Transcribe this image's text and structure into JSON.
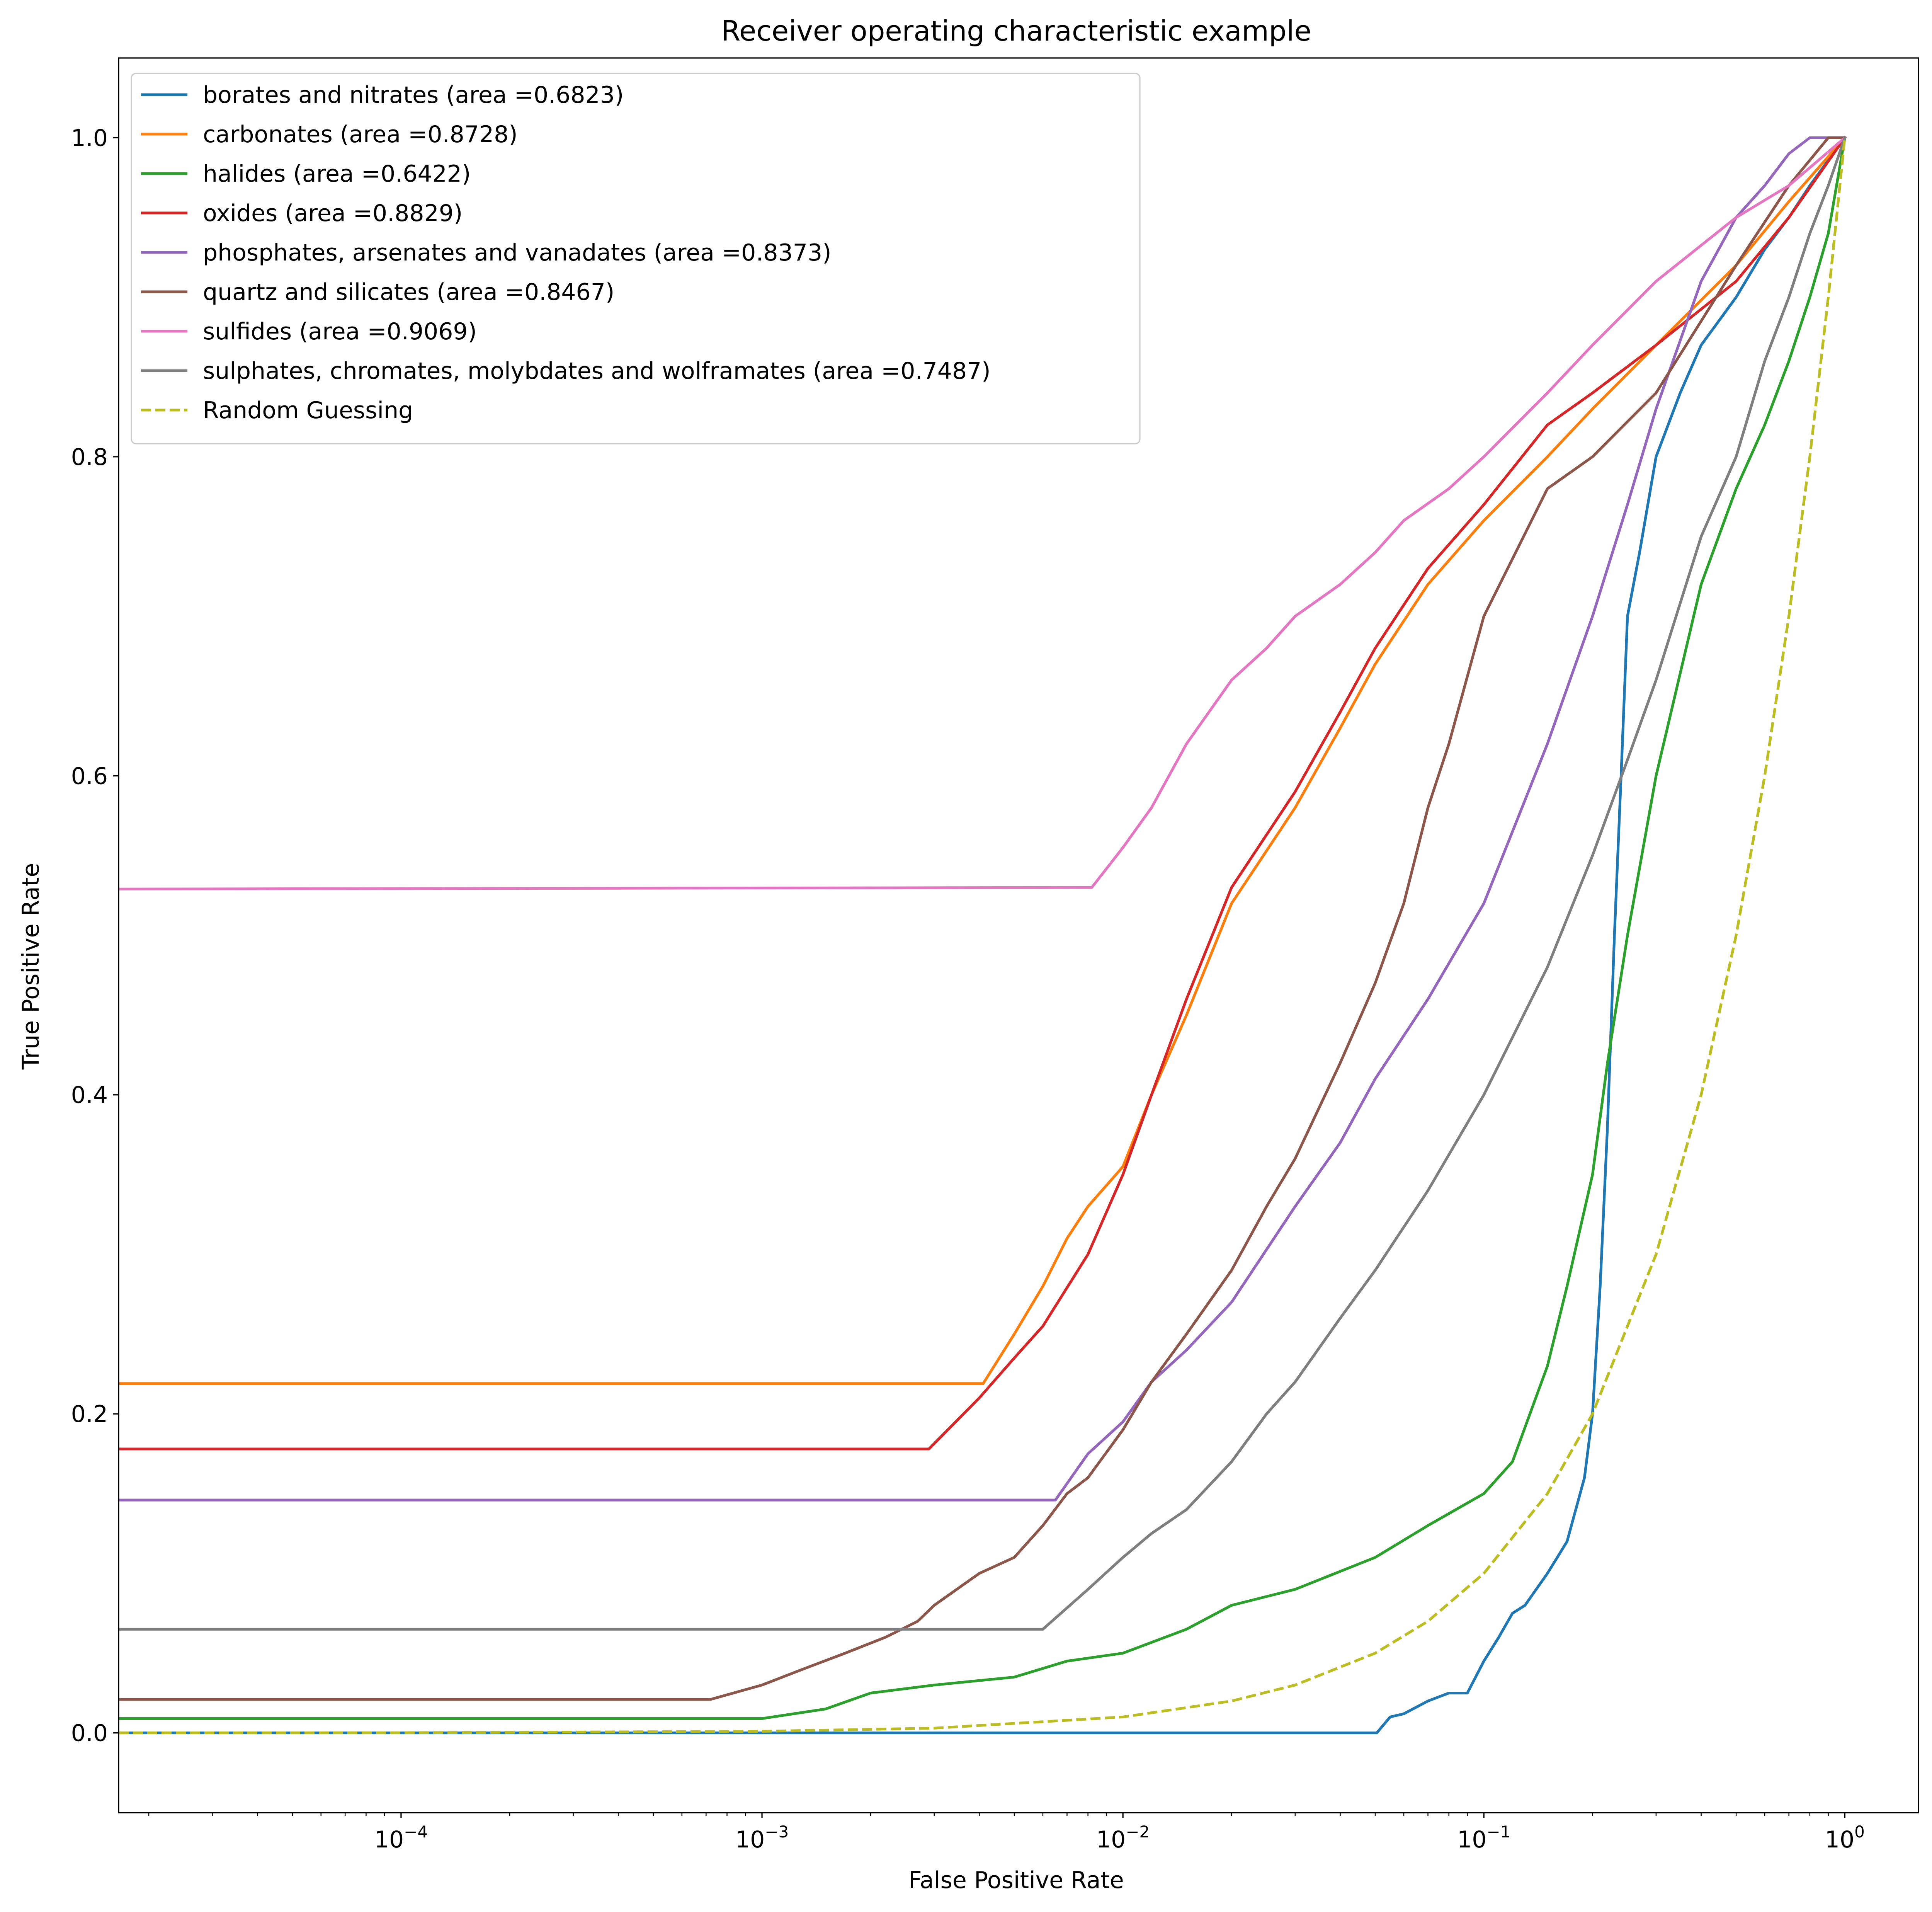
{
  "chart_data": {
    "type": "line",
    "title": "Receiver operating characteristic example",
    "xlabel": "False Positive Rate",
    "ylabel": "True Positive Rate",
    "xscale": "log",
    "xlim": [
      1.65e-05,
      1.6
    ],
    "ylim": [
      -0.05,
      1.05
    ],
    "grid": false,
    "legend_position": "upper-left",
    "x_ticks": [
      {
        "value": 0.0001,
        "base": "10",
        "exp": "−4"
      },
      {
        "value": 0.001,
        "base": "10",
        "exp": "−3"
      },
      {
        "value": 0.01,
        "base": "10",
        "exp": "−2"
      },
      {
        "value": 0.1,
        "base": "10",
        "exp": "−1"
      },
      {
        "value": 1,
        "base": "10",
        "exp": "0"
      }
    ],
    "y_ticks": [
      {
        "value": 0.0,
        "label": "0.0"
      },
      {
        "value": 0.2,
        "label": "0.2"
      },
      {
        "value": 0.4,
        "label": "0.4"
      },
      {
        "value": 0.6,
        "label": "0.6"
      },
      {
        "value": 0.8,
        "label": "0.8"
      },
      {
        "value": 1.0,
        "label": "1.0"
      }
    ],
    "series": [
      {
        "name": "borates and nitrates (area =0.6823)",
        "color": "#1f77b4",
        "dash": false,
        "x": [
          1.65e-05,
          0.0505,
          0.055,
          0.06,
          0.07,
          0.08,
          0.09,
          0.1,
          0.11,
          0.12,
          0.13,
          0.15,
          0.17,
          0.19,
          0.2,
          0.21,
          0.22,
          0.23,
          0.24,
          0.25,
          0.27,
          0.3,
          0.35,
          0.4,
          0.5,
          0.6,
          0.7,
          0.8,
          1.0
        ],
        "y": [
          0.0,
          0.0,
          0.01,
          0.012,
          0.02,
          0.025,
          0.025,
          0.045,
          0.06,
          0.075,
          0.08,
          0.1,
          0.12,
          0.16,
          0.2,
          0.28,
          0.38,
          0.5,
          0.6,
          0.7,
          0.74,
          0.8,
          0.84,
          0.87,
          0.9,
          0.93,
          0.95,
          0.97,
          1.0
        ]
      },
      {
        "name": "carbonates (area =0.8728)",
        "color": "#ff7f0e",
        "dash": false,
        "x": [
          1.65e-05,
          0.0041,
          0.005,
          0.006,
          0.007,
          0.008,
          0.01,
          0.012,
          0.015,
          0.02,
          0.03,
          0.04,
          0.05,
          0.07,
          0.1,
          0.15,
          0.2,
          0.3,
          0.5,
          0.7,
          1.0
        ],
        "y": [
          0.219,
          0.219,
          0.25,
          0.28,
          0.31,
          0.33,
          0.355,
          0.4,
          0.45,
          0.52,
          0.58,
          0.63,
          0.67,
          0.72,
          0.76,
          0.8,
          0.83,
          0.87,
          0.92,
          0.96,
          1.0
        ]
      },
      {
        "name": "halides (area =0.6422)",
        "color": "#2ca02c",
        "dash": false,
        "x": [
          1.65e-05,
          0.001,
          0.0015,
          0.002,
          0.003,
          0.005,
          0.007,
          0.01,
          0.015,
          0.02,
          0.03,
          0.05,
          0.07,
          0.1,
          0.12,
          0.15,
          0.17,
          0.2,
          0.22,
          0.25,
          0.3,
          0.4,
          0.5,
          0.6,
          0.7,
          0.8,
          0.9,
          1.0
        ],
        "y": [
          0.009,
          0.009,
          0.015,
          0.025,
          0.03,
          0.035,
          0.045,
          0.05,
          0.065,
          0.08,
          0.09,
          0.11,
          0.13,
          0.15,
          0.17,
          0.23,
          0.28,
          0.35,
          0.42,
          0.5,
          0.6,
          0.72,
          0.78,
          0.82,
          0.86,
          0.9,
          0.94,
          1.0
        ]
      },
      {
        "name": "oxides (area =0.8829)",
        "color": "#d62728",
        "dash": false,
        "x": [
          1.65e-05,
          0.0029,
          0.004,
          0.005,
          0.006,
          0.008,
          0.01,
          0.012,
          0.015,
          0.02,
          0.03,
          0.04,
          0.05,
          0.07,
          0.1,
          0.15,
          0.2,
          0.3,
          0.5,
          0.7,
          1.0
        ],
        "y": [
          0.178,
          0.178,
          0.21,
          0.235,
          0.255,
          0.3,
          0.35,
          0.4,
          0.46,
          0.53,
          0.59,
          0.64,
          0.68,
          0.73,
          0.77,
          0.82,
          0.84,
          0.87,
          0.91,
          0.95,
          1.0
        ]
      },
      {
        "name": "phosphates, arsenates and vanadates (area =0.8373)",
        "color": "#9467bd",
        "dash": false,
        "x": [
          1.65e-05,
          0.0065,
          0.008,
          0.01,
          0.012,
          0.015,
          0.02,
          0.03,
          0.04,
          0.05,
          0.07,
          0.1,
          0.15,
          0.2,
          0.25,
          0.3,
          0.4,
          0.5,
          0.6,
          0.7,
          0.8,
          0.9,
          1.0
        ],
        "y": [
          0.146,
          0.146,
          0.175,
          0.195,
          0.22,
          0.24,
          0.27,
          0.33,
          0.37,
          0.41,
          0.46,
          0.52,
          0.62,
          0.7,
          0.77,
          0.83,
          0.91,
          0.95,
          0.97,
          0.99,
          1.0,
          1.0,
          1.0
        ]
      },
      {
        "name": "quartz and silicates (area =0.8467)",
        "color": "#8c564b",
        "dash": false,
        "x": [
          1.65e-05,
          0.00072,
          0.001,
          0.0013,
          0.0017,
          0.0022,
          0.0027,
          0.003,
          0.004,
          0.005,
          0.006,
          0.007,
          0.008,
          0.01,
          0.012,
          0.015,
          0.02,
          0.025,
          0.03,
          0.04,
          0.05,
          0.06,
          0.07,
          0.08,
          0.1,
          0.15,
          0.2,
          0.3,
          0.5,
          0.7,
          0.9,
          1.0
        ],
        "y": [
          0.021,
          0.021,
          0.03,
          0.04,
          0.05,
          0.06,
          0.07,
          0.08,
          0.1,
          0.11,
          0.13,
          0.15,
          0.16,
          0.19,
          0.22,
          0.25,
          0.29,
          0.33,
          0.36,
          0.42,
          0.47,
          0.52,
          0.58,
          0.62,
          0.7,
          0.78,
          0.8,
          0.84,
          0.92,
          0.97,
          1.0,
          1.0
        ]
      },
      {
        "name": "sulfides (area =0.9069)",
        "color": "#e377c2",
        "dash": false,
        "x": [
          1.65e-05,
          0.0082,
          0.01,
          0.012,
          0.015,
          0.02,
          0.025,
          0.03,
          0.04,
          0.05,
          0.06,
          0.08,
          0.1,
          0.15,
          0.2,
          0.3,
          0.5,
          0.7,
          1.0
        ],
        "y": [
          0.529,
          0.53,
          0.555,
          0.58,
          0.62,
          0.66,
          0.68,
          0.7,
          0.72,
          0.74,
          0.76,
          0.78,
          0.8,
          0.84,
          0.87,
          0.91,
          0.95,
          0.97,
          1.0
        ]
      },
      {
        "name": "sulphates, chromates, molybdates and wolframates (area =0.7487)",
        "color": "#7f7f7f",
        "dash": false,
        "x": [
          1.65e-05,
          0.006,
          0.008,
          0.01,
          0.012,
          0.015,
          0.02,
          0.025,
          0.03,
          0.04,
          0.05,
          0.07,
          0.1,
          0.15,
          0.2,
          0.25,
          0.3,
          0.4,
          0.5,
          0.6,
          0.7,
          0.8,
          0.9,
          1.0
        ],
        "y": [
          0.065,
          0.065,
          0.09,
          0.11,
          0.125,
          0.14,
          0.17,
          0.2,
          0.22,
          0.26,
          0.29,
          0.34,
          0.4,
          0.48,
          0.55,
          0.61,
          0.66,
          0.75,
          0.8,
          0.86,
          0.9,
          0.94,
          0.97,
          1.0
        ]
      },
      {
        "name": "Random Guessing",
        "color": "#bcbd22",
        "dash": true,
        "x": [
          1.65e-05,
          0.0001,
          0.001,
          0.003,
          0.01,
          0.02,
          0.03,
          0.05,
          0.07,
          0.1,
          0.15,
          0.2,
          0.3,
          0.4,
          0.5,
          0.6,
          0.7,
          0.8,
          0.9,
          1.0
        ],
        "y": [
          1.65e-05,
          0.0001,
          0.001,
          0.003,
          0.01,
          0.02,
          0.03,
          0.05,
          0.07,
          0.1,
          0.15,
          0.2,
          0.3,
          0.4,
          0.5,
          0.6,
          0.7,
          0.8,
          0.9,
          1.0
        ]
      }
    ]
  }
}
